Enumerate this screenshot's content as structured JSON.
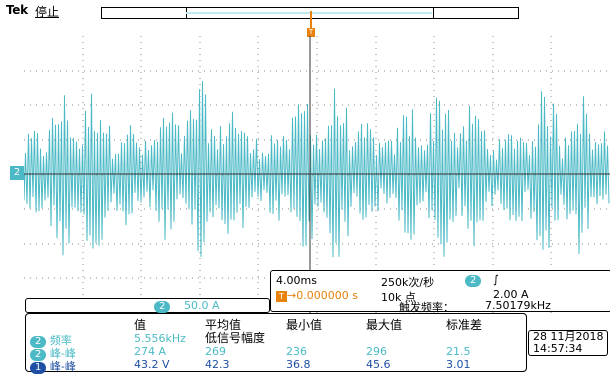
{
  "header": {
    "brand": "Tek",
    "status": "停止",
    "trigger_marker": "T"
  },
  "channel_marker": "2",
  "trigger_panel": {
    "horizontal_scale": "4.00ms",
    "sample_rate": "250k次/秒",
    "trigger_source_channel": "2",
    "slope_symbol": "∫",
    "t_icon": "T",
    "arrow": "→",
    "position": "0.000000 s",
    "record_length": "10k 点",
    "trigger_level": "2.00 A",
    "trigger_freq_label": "触发频率：",
    "trigger_freq_value": "7.50179kHz"
  },
  "scale_box": {
    "channel": "2",
    "value": "50.0 A"
  },
  "measurements": {
    "headers": [
      "值",
      "平均值",
      "最小值",
      "最大值",
      "标准差"
    ],
    "low_amplitude_note": "低信号幅度",
    "rows": [
      {
        "channel": "2",
        "name": "频率",
        "value": "5.556kHz",
        "mean": "",
        "min": "",
        "max": "",
        "std": "",
        "color": "#4cbac6"
      },
      {
        "channel": "2",
        "name": "峰-峰",
        "value": "274 A",
        "mean": "269",
        "min": "236",
        "max": "296",
        "std": "21.5",
        "color": "#4cbac6"
      },
      {
        "channel": "1",
        "name": "峰-峰",
        "value": "43.2 V",
        "mean": "42.3",
        "min": "36.8",
        "max": "45.6",
        "std": "3.01",
        "color": "#1f4fa3"
      }
    ]
  },
  "datetime": {
    "date": "28 11月2018",
    "time": "14:57:34"
  },
  "colors": {
    "ch1": "#1f4fa3",
    "ch2": "#4cbac6",
    "trigger": "#e8820c"
  }
}
